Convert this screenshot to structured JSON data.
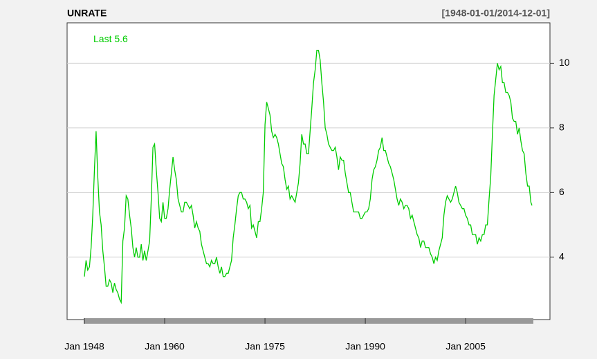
{
  "chart_data": {
    "type": "line",
    "title": "UNRATE",
    "subtitle": "[1948-01-01/2014-12-01]",
    "last_label": "Last",
    "x": [
      "1948-01",
      "1948-04",
      "1948-07",
      "1948-10",
      "1949-01",
      "1949-04",
      "1949-07",
      "1949-10",
      "1950-01",
      "1950-04",
      "1950-07",
      "1950-10",
      "1951-01",
      "1951-04",
      "1951-07",
      "1951-10",
      "1952-01",
      "1952-04",
      "1952-07",
      "1952-10",
      "1953-01",
      "1953-04",
      "1953-07",
      "1953-10",
      "1954-01",
      "1954-04",
      "1954-07",
      "1954-10",
      "1955-01",
      "1955-04",
      "1955-07",
      "1955-10",
      "1956-01",
      "1956-04",
      "1956-07",
      "1956-10",
      "1957-01",
      "1957-04",
      "1957-07",
      "1957-10",
      "1958-01",
      "1958-04",
      "1958-07",
      "1958-10",
      "1959-01",
      "1959-04",
      "1959-07",
      "1959-10",
      "1960-01",
      "1960-04",
      "1960-07",
      "1960-10",
      "1961-01",
      "1961-04",
      "1961-07",
      "1961-10",
      "1962-01",
      "1962-04",
      "1962-07",
      "1962-10",
      "1963-01",
      "1963-04",
      "1963-07",
      "1963-10",
      "1964-01",
      "1964-04",
      "1964-07",
      "1964-10",
      "1965-01",
      "1965-04",
      "1965-07",
      "1965-10",
      "1966-01",
      "1966-04",
      "1966-07",
      "1966-10",
      "1967-01",
      "1967-04",
      "1967-07",
      "1967-10",
      "1968-01",
      "1968-04",
      "1968-07",
      "1968-10",
      "1969-01",
      "1969-04",
      "1969-07",
      "1969-10",
      "1970-01",
      "1970-04",
      "1970-07",
      "1970-10",
      "1971-01",
      "1971-04",
      "1971-07",
      "1971-10",
      "1972-01",
      "1972-04",
      "1972-07",
      "1972-10",
      "1973-01",
      "1973-04",
      "1973-07",
      "1973-10",
      "1974-01",
      "1974-04",
      "1974-07",
      "1974-10",
      "1975-01",
      "1975-04",
      "1975-07",
      "1975-10",
      "1976-01",
      "1976-04",
      "1976-07",
      "1976-10",
      "1977-01",
      "1977-04",
      "1977-07",
      "1977-10",
      "1978-01",
      "1978-04",
      "1978-07",
      "1978-10",
      "1979-01",
      "1979-04",
      "1979-07",
      "1979-10",
      "1980-01",
      "1980-04",
      "1980-07",
      "1980-10",
      "1981-01",
      "1981-04",
      "1981-07",
      "1981-10",
      "1982-01",
      "1982-04",
      "1982-07",
      "1982-10",
      "1983-01",
      "1983-04",
      "1983-07",
      "1983-10",
      "1984-01",
      "1984-04",
      "1984-07",
      "1984-10",
      "1985-01",
      "1985-04",
      "1985-07",
      "1985-10",
      "1986-01",
      "1986-04",
      "1986-07",
      "1986-10",
      "1987-01",
      "1987-04",
      "1987-07",
      "1987-10",
      "1988-01",
      "1988-04",
      "1988-07",
      "1988-10",
      "1989-01",
      "1989-04",
      "1989-07",
      "1989-10",
      "1990-01",
      "1990-04",
      "1990-07",
      "1990-10",
      "1991-01",
      "1991-04",
      "1991-07",
      "1991-10",
      "1992-01",
      "1992-04",
      "1992-07",
      "1992-10",
      "1993-01",
      "1993-04",
      "1993-07",
      "1993-10",
      "1994-01",
      "1994-04",
      "1994-07",
      "1994-10",
      "1995-01",
      "1995-04",
      "1995-07",
      "1995-10",
      "1996-01",
      "1996-04",
      "1996-07",
      "1996-10",
      "1997-01",
      "1997-04",
      "1997-07",
      "1997-10",
      "1998-01",
      "1998-04",
      "1998-07",
      "1998-10",
      "1999-01",
      "1999-04",
      "1999-07",
      "1999-10",
      "2000-01",
      "2000-04",
      "2000-07",
      "2000-10",
      "2001-01",
      "2001-04",
      "2001-07",
      "2001-10",
      "2002-01",
      "2002-04",
      "2002-07",
      "2002-10",
      "2003-01",
      "2003-04",
      "2003-07",
      "2003-10",
      "2004-01",
      "2004-04",
      "2004-07",
      "2004-10",
      "2005-01",
      "2005-04",
      "2005-07",
      "2005-10",
      "2006-01",
      "2006-04",
      "2006-07",
      "2006-10",
      "2007-01",
      "2007-04",
      "2007-07",
      "2007-10",
      "2008-01",
      "2008-04",
      "2008-07",
      "2008-10",
      "2009-01",
      "2009-04",
      "2009-07",
      "2009-10",
      "2010-01",
      "2010-04",
      "2010-07",
      "2010-10",
      "2011-01",
      "2011-04",
      "2011-07",
      "2011-10",
      "2012-01",
      "2012-04",
      "2012-07",
      "2012-10",
      "2013-01",
      "2013-04",
      "2013-07",
      "2013-10",
      "2014-01",
      "2014-04",
      "2014-07",
      "2014-10",
      "2014-12"
    ],
    "series": [
      {
        "name": "UNRATE",
        "color": "#00cc00",
        "values": [
          3.4,
          3.9,
          3.6,
          3.7,
          4.3,
          5.3,
          6.7,
          7.9,
          6.5,
          5.4,
          5.0,
          4.2,
          3.7,
          3.1,
          3.1,
          3.3,
          3.2,
          2.9,
          3.2,
          3.0,
          2.9,
          2.7,
          2.6,
          4.5,
          4.9,
          5.9,
          5.8,
          5.3,
          4.9,
          4.3,
          4.0,
          4.3,
          4.0,
          4.0,
          4.4,
          3.9,
          4.2,
          3.9,
          4.2,
          4.5,
          5.8,
          7.4,
          7.5,
          6.7,
          6.0,
          5.2,
          5.1,
          5.7,
          5.2,
          5.2,
          5.5,
          6.1,
          6.6,
          7.1,
          6.7,
          6.4,
          5.8,
          5.6,
          5.4,
          5.4,
          5.7,
          5.7,
          5.6,
          5.5,
          5.6,
          5.3,
          4.9,
          5.1,
          4.9,
          4.8,
          4.4,
          4.2,
          4.0,
          3.8,
          3.8,
          3.7,
          3.9,
          3.8,
          3.8,
          4.0,
          3.7,
          3.5,
          3.7,
          3.4,
          3.4,
          3.5,
          3.5,
          3.7,
          3.9,
          4.6,
          5.0,
          5.5,
          5.9,
          6.0,
          6.0,
          5.8,
          5.8,
          5.7,
          5.5,
          5.6,
          4.9,
          5.0,
          4.8,
          4.6,
          5.1,
          5.1,
          5.5,
          6.0,
          8.1,
          8.8,
          8.6,
          8.4,
          7.9,
          7.7,
          7.8,
          7.7,
          7.5,
          7.2,
          6.9,
          6.8,
          6.4,
          6.1,
          6.2,
          5.8,
          5.9,
          5.8,
          5.7,
          6.0,
          6.3,
          6.9,
          7.8,
          7.5,
          7.5,
          7.2,
          7.2,
          7.9,
          8.6,
          9.4,
          9.8,
          10.4,
          10.4,
          10.1,
          9.4,
          8.8,
          8.0,
          7.8,
          7.5,
          7.4,
          7.3,
          7.3,
          7.4,
          7.1,
          6.7,
          7.1,
          7.0,
          7.0,
          6.6,
          6.3,
          6.0,
          6.0,
          5.7,
          5.4,
          5.4,
          5.4,
          5.4,
          5.2,
          5.2,
          5.3,
          5.4,
          5.4,
          5.5,
          5.8,
          6.4,
          6.7,
          6.8,
          7.0,
          7.3,
          7.4,
          7.7,
          7.3,
          7.3,
          7.1,
          6.9,
          6.8,
          6.6,
          6.4,
          6.1,
          5.8,
          5.6,
          5.8,
          5.7,
          5.5,
          5.6,
          5.6,
          5.5,
          5.2,
          5.3,
          5.1,
          4.9,
          4.7,
          4.6,
          4.3,
          4.5,
          4.5,
          4.3,
          4.3,
          4.3,
          4.1,
          4.0,
          3.8,
          4.0,
          3.9,
          4.2,
          4.4,
          4.6,
          5.3,
          5.7,
          5.9,
          5.8,
          5.7,
          5.8,
          6.0,
          6.2,
          6.0,
          5.7,
          5.6,
          5.5,
          5.5,
          5.3,
          5.2,
          5.0,
          5.0,
          4.7,
          4.7,
          4.7,
          4.4,
          4.6,
          4.5,
          4.7,
          4.7,
          5.0,
          5.0,
          5.8,
          6.5,
          7.8,
          9.0,
          9.5,
          10.0,
          9.8,
          9.9,
          9.4,
          9.4,
          9.1,
          9.1,
          9.0,
          8.8,
          8.3,
          8.2,
          8.2,
          7.8,
          8.0,
          7.6,
          7.3,
          7.2,
          6.6,
          6.2,
          6.2,
          5.7,
          5.6
        ]
      }
    ],
    "ylim": [
      2.07,
      11.25
    ],
    "yticks": [
      4,
      6,
      8,
      10
    ],
    "xticks": [
      {
        "value": "1948-01",
        "label": "Jan 1948"
      },
      {
        "value": "1960-01",
        "label": "Jan 1960"
      },
      {
        "value": "1975-01",
        "label": "Jan 1975"
      },
      {
        "value": "1990-01",
        "label": "Jan 1990"
      },
      {
        "value": "2005-01",
        "label": "Jan 2005"
      }
    ],
    "grid": true
  }
}
